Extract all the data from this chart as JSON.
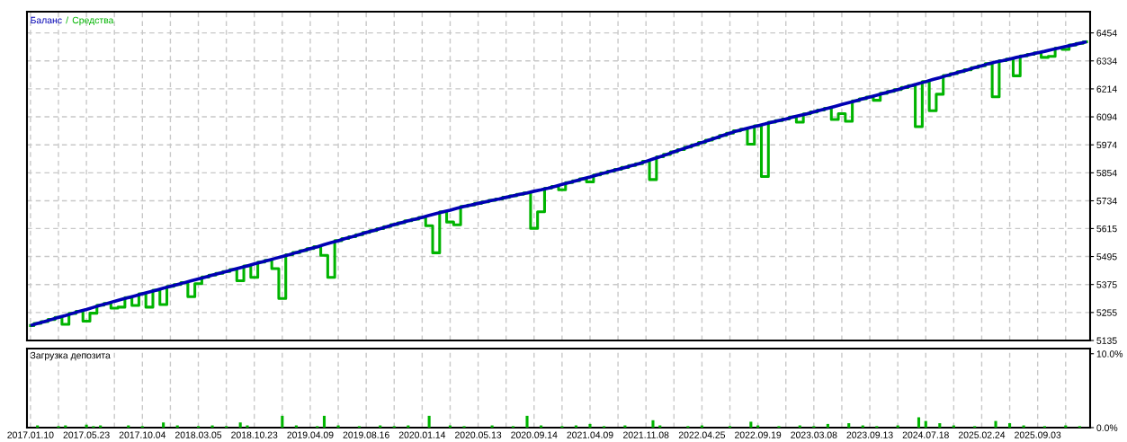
{
  "chart_data": [
    {
      "type": "line",
      "legend": "top left",
      "annotations": [
        "/"
      ],
      "grid": true,
      "tick_labels": "y",
      "ylim": [
        5135,
        6545
      ],
      "categories": [
        "2017.01.10",
        null,
        null,
        null,
        null,
        null,
        null,
        null,
        "2017.05.23",
        null,
        null,
        null,
        null,
        null,
        null,
        null,
        "2017.10.04",
        null,
        null,
        null,
        null,
        null,
        null,
        null,
        "2018.03.05",
        null,
        null,
        null,
        null,
        null,
        null,
        null,
        "2018.10.23",
        null,
        null,
        null,
        null,
        null,
        null,
        null,
        "2019.04.09",
        null,
        null,
        null,
        null,
        null,
        null,
        null,
        "2019.08.16",
        null,
        null,
        null,
        null,
        null,
        null,
        null,
        "2020.01.14",
        null,
        null,
        null,
        null,
        null,
        null,
        null,
        "2020.05.13",
        null,
        null,
        null,
        null,
        null,
        null,
        null,
        "2020.09.14",
        null,
        null,
        null,
        null,
        null,
        null,
        null,
        "2021.04.09",
        null,
        null,
        null,
        null,
        null,
        null,
        null,
        "2021.11.08",
        null,
        null,
        null,
        null,
        null,
        null,
        null,
        "2022.04.25",
        null,
        null,
        null,
        null,
        null,
        null,
        null,
        "2022.09.19",
        null,
        null,
        null,
        null,
        null,
        null,
        null,
        "2023.03.08",
        null,
        null,
        null,
        null,
        null,
        null,
        null,
        "2023.09.13",
        null,
        null,
        null,
        null,
        null,
        null,
        null,
        "2024.07.18",
        null,
        null,
        null,
        null,
        null,
        null,
        null,
        "2025.02.24",
        null,
        null,
        null,
        null,
        null,
        null,
        null,
        "2025.09.03",
        null,
        null,
        null,
        null,
        null,
        null,
        null
      ],
      "yticks": [
        5135,
        5255,
        5375,
        5495,
        5615,
        5734,
        5854,
        5974,
        6094,
        6214,
        6334,
        6454
      ],
      "series": [
        {
          "name": "Средства",
          "color": "#00b400",
          "type": "step",
          "values": [
            5199,
            5208,
            5216,
            5225,
            5234,
            5204,
            5251,
            5260,
            5218,
            5252,
            5286,
            5294,
            5274,
            5278,
            5319,
            5285,
            5335,
            5278,
            5351,
            5289,
            5367,
            5375,
            5383,
            5323,
            5379,
            5407,
            5415,
            5423,
            5431,
            5439,
            5391,
            5455,
            5406,
            5471,
            5479,
            5443,
            5315,
            5503,
            5512,
            5520,
            5529,
            5537,
            5500,
            5406,
            5563,
            5572,
            5580,
            5589,
            5598,
            5606,
            5615,
            5623,
            5632,
            5640,
            5648,
            5655,
            5663,
            5627,
            5511,
            5687,
            5643,
            5631,
            5710,
            5716,
            5723,
            5729,
            5736,
            5742,
            5749,
            5755,
            5762,
            5768,
            5616,
            5687,
            5788,
            5796,
            5781,
            5812,
            5820,
            5828,
            5815,
            5845,
            5853,
            5861,
            5869,
            5877,
            5885,
            5893,
            5903,
            5825,
            5923,
            5933,
            5944,
            5954,
            5964,
            5974,
            5984,
            5994,
            6004,
            6014,
            6024,
            6034,
            6041,
            5977,
            6056,
            5838,
            6071,
            6078,
            6085,
            6093,
            6071,
            6107,
            6115,
            6123,
            6131,
            6083,
            6108,
            6075,
            6163,
            6171,
            6179,
            6165,
            6195,
            6203,
            6211,
            6220,
            6228,
            6052,
            6245,
            6120,
            6191,
            6271,
            6279,
            6288,
            6296,
            6305,
            6313,
            6322,
            6180,
            6335,
            6342,
            6270,
            6355,
            6362,
            6369,
            6349,
            6353,
            6389,
            6383,
            6402,
            6409,
            6416
          ]
        },
        {
          "name": "Баланс",
          "color": "#0000b4",
          "values": [
            5199,
            5208,
            5216,
            5225,
            5234,
            5242,
            5251,
            5260,
            5268,
            5277,
            5286,
            5294,
            5303,
            5311,
            5319,
            5327,
            5335,
            5343,
            5351,
            5359,
            5367,
            5375,
            5383,
            5391,
            5399,
            5407,
            5415,
            5423,
            5431,
            5439,
            5447,
            5455,
            5463,
            5471,
            5479,
            5487,
            5495,
            5503,
            5512,
            5520,
            5529,
            5537,
            5546,
            5555,
            5563,
            5572,
            5580,
            5589,
            5598,
            5606,
            5615,
            5623,
            5632,
            5640,
            5648,
            5655,
            5663,
            5671,
            5679,
            5687,
            5694,
            5702,
            5710,
            5716,
            5723,
            5729,
            5736,
            5742,
            5749,
            5755,
            5762,
            5768,
            5775,
            5781,
            5788,
            5796,
            5804,
            5812,
            5820,
            5828,
            5836,
            5845,
            5853,
            5861,
            5869,
            5877,
            5885,
            5893,
            5903,
            5913,
            5923,
            5933,
            5944,
            5954,
            5964,
            5974,
            5984,
            5994,
            6004,
            6014,
            6024,
            6034,
            6041,
            6049,
            6056,
            6063,
            6071,
            6078,
            6085,
            6093,
            6100,
            6107,
            6115,
            6123,
            6131,
            6139,
            6147,
            6155,
            6163,
            6171,
            6179,
            6187,
            6195,
            6203,
            6211,
            6220,
            6228,
            6237,
            6245,
            6254,
            6262,
            6271,
            6279,
            6288,
            6296,
            6305,
            6313,
            6322,
            6329,
            6335,
            6342,
            6349,
            6355,
            6362,
            6369,
            6375,
            6382,
            6389,
            6396,
            6402,
            6409,
            6416
          ]
        }
      ]
    },
    {
      "type": "bar",
      "title": "Загрузка депозита",
      "grid": "x",
      "ylim": [
        0,
        10.7
      ],
      "categories": [
        "2017.01.10",
        null,
        null,
        null,
        null,
        null,
        null,
        null,
        "2017.05.23",
        null,
        null,
        null,
        null,
        null,
        null,
        null,
        "2017.10.04",
        null,
        null,
        null,
        null,
        null,
        null,
        null,
        "2018.03.05",
        null,
        null,
        null,
        null,
        null,
        null,
        null,
        "2018.10.23",
        null,
        null,
        null,
        null,
        null,
        null,
        null,
        "2019.04.09",
        null,
        null,
        null,
        null,
        null,
        null,
        null,
        "2019.08.16",
        null,
        null,
        null,
        null,
        null,
        null,
        null,
        "2020.01.14",
        null,
        null,
        null,
        null,
        null,
        null,
        null,
        "2020.05.13",
        null,
        null,
        null,
        null,
        null,
        null,
        null,
        "2020.09.14",
        null,
        null,
        null,
        null,
        null,
        null,
        null,
        "2021.04.09",
        null,
        null,
        null,
        null,
        null,
        null,
        null,
        "2021.11.08",
        null,
        null,
        null,
        null,
        null,
        null,
        null,
        "2022.04.25",
        null,
        null,
        null,
        null,
        null,
        null,
        null,
        "2022.09.19",
        null,
        null,
        null,
        null,
        null,
        null,
        null,
        "2023.03.08",
        null,
        null,
        null,
        null,
        null,
        null,
        null,
        "2023.09.13",
        null,
        null,
        null,
        null,
        null,
        null,
        null,
        "2024.07.18",
        null,
        null,
        null,
        null,
        null,
        null,
        null,
        "2025.02.24",
        null,
        null,
        null,
        null,
        null,
        null,
        null,
        "2025.09.03",
        null,
        null,
        null,
        null,
        null,
        null,
        null
      ],
      "yticks": [
        {
          "value": 0,
          "label": "0.0%"
        },
        {
          "value": 10,
          "label": "10.0%"
        }
      ],
      "series": [
        {
          "color": "#00b400",
          "values": [
            null,
            0.3,
            null,
            null,
            0.2,
            0.3,
            null,
            null,
            0.4,
            0.2,
            0.3,
            null,
            null,
            null,
            0.3,
            null,
            0.2,
            null,
            null,
            0.7,
            null,
            0.3,
            null,
            null,
            0.2,
            null,
            0.3,
            null,
            0.2,
            null,
            0.7,
            0.3,
            null,
            null,
            null,
            null,
            1.6,
            null,
            0.3,
            null,
            null,
            0.2,
            1.6,
            null,
            0.3,
            null,
            null,
            0.2,
            null,
            null,
            0.3,
            null,
            0.2,
            null,
            0.3,
            null,
            null,
            1.6,
            null,
            null,
            0.3,
            null,
            0.2,
            null,
            null,
            null,
            0.3,
            null,
            null,
            0.2,
            null,
            1.6,
            null,
            0.3,
            null,
            null,
            0.2,
            null,
            0.3,
            null,
            0.5,
            null,
            0.2,
            null,
            null,
            0.3,
            null,
            null,
            null,
            1.0,
            0.3,
            null,
            null,
            null,
            0.2,
            null,
            0.3,
            null,
            null,
            null,
            0.2,
            null,
            null,
            0.8,
            0.3,
            null,
            null,
            0.2,
            null,
            null,
            0.3,
            null,
            0.2,
            null,
            0.5,
            null,
            null,
            0.6,
            null,
            0.3,
            null,
            0.2,
            null,
            null,
            0.3,
            null,
            null,
            1.4,
            0.9,
            null,
            0.6,
            null,
            0.3,
            null,
            null,
            0.2,
            null,
            null,
            0.9,
            null,
            0.6,
            null,
            0.3,
            null,
            null,
            0.2,
            null,
            null,
            0.3,
            null,
            0.2,
            null
          ]
        }
      ]
    }
  ]
}
